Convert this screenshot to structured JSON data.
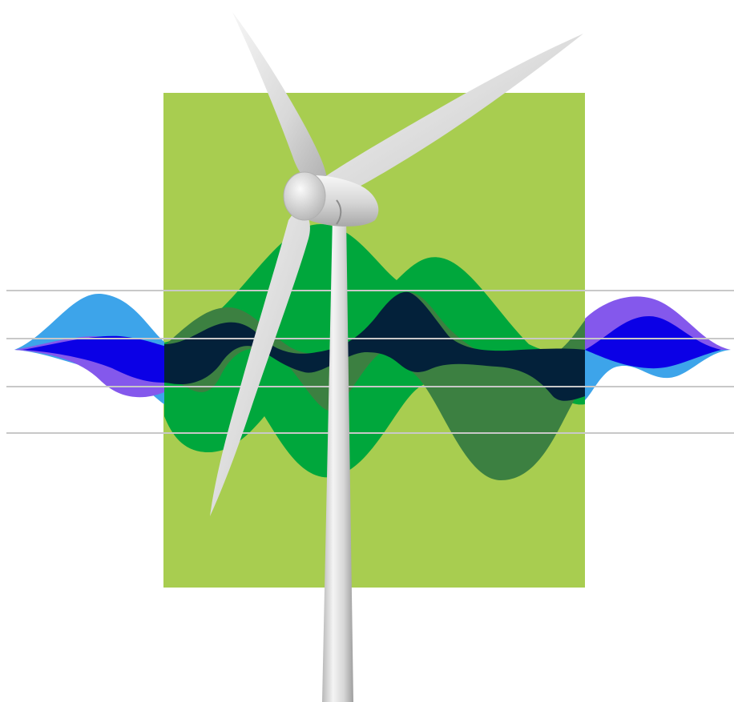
{
  "illustration": {
    "subject": "wind-turbine",
    "colors": {
      "background": "#ffffff",
      "panel": "#a8cd50",
      "guide_line": "#c8c8c8",
      "wave_blue": "#3da4ea",
      "wave_violet": "#8458ec",
      "wave_deep_blue": "#0b00e6",
      "wave_green": "#00a73c",
      "wave_dark_green": "#3c8041",
      "wave_navy": "#03213a",
      "turbine_light": "#f2f2f2",
      "turbine_mid": "#d0d0d0",
      "turbine_dark": "#a6a6a6"
    }
  }
}
